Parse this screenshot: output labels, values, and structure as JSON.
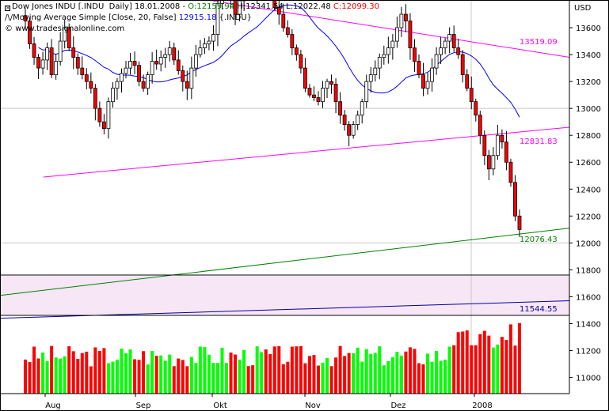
{
  "header": {
    "line1": {
      "symbol": "Dow Jones INDU [.INDU  Daily]",
      "date": "18.01.2008",
      "open_label": "O:",
      "open": "12159.94",
      "high_label": "H:",
      "high": "12341.54",
      "low_label": "L:",
      "low": "12022.48",
      "close_label": "C:",
      "close": "12099.30"
    },
    "line2": {
      "indicator": "Moving Average Simple [Close, 20, False]",
      "value": "12915.18",
      "symbol": "{.INDU}"
    },
    "line3": {
      "watermark": "www.tradesignalonline.com"
    }
  },
  "colors": {
    "up": "#00ff00",
    "down": "#ff0000",
    "candle_outline": "#000000",
    "moving_average": "#0000ff",
    "trendline_magenta": "#ff00ff",
    "trendline_green": "#008000",
    "trendline_blue": "#0000a0",
    "channel_fill": "#f7e6f5",
    "grid": "#c8c8c8"
  },
  "chart_data": {
    "type": "candlestick",
    "currency_label": "USD",
    "y_ticks": [
      11000,
      11200,
      11400,
      11600,
      11800,
      12000,
      12200,
      12400,
      12600,
      12800,
      13000,
      13200,
      13400,
      13600
    ],
    "x_labels": [
      "Aug",
      "Sep",
      "Okt",
      "Nov",
      "Dez",
      "2008"
    ],
    "value_labels": [
      {
        "text": "13519.09",
        "color": "#ff00ff"
      },
      {
        "text": "12831.83",
        "color": "#ff00ff"
      },
      {
        "text": "12076.43",
        "color": "#008000"
      },
      {
        "text": "11544.55",
        "color": "#0000a0"
      }
    ],
    "trendlines": [
      {
        "name": "upper-resistance",
        "color": "#ff00ff",
        "points": [
          [
            "Jul",
            14050
          ],
          [
            "end",
            13380
          ]
        ]
      },
      {
        "name": "support-line",
        "color": "#ff00ff",
        "points": [
          [
            "Jul",
            12490
          ],
          [
            "end",
            12860
          ]
        ]
      },
      {
        "name": "long-support",
        "color": "#008000",
        "points": [
          [
            "Jul",
            11610
          ],
          [
            "end",
            12110
          ]
        ]
      },
      {
        "name": "volume-trend",
        "color": "#0000a0",
        "points": [
          [
            "Jul",
            11440
          ],
          [
            "end",
            11570
          ]
        ]
      }
    ],
    "close_series": [
      13650,
      13480,
      13380,
      13300,
      13360,
      13450,
      13250,
      13350,
      13500,
      13600,
      13450,
      13380,
      13300,
      13250,
      13200,
      13150,
      13000,
      12900,
      12850,
      13050,
      13150,
      13200,
      13260,
      13300,
      13350,
      13320,
      13200,
      13150,
      13250,
      13350,
      13330,
      13380,
      13400,
      13450,
      13360,
      13280,
      13200,
      13150,
      13300,
      13400,
      13450,
      13480,
      13500,
      13550,
      13780,
      13900,
      13950,
      13830,
      13700,
      13800,
      13890,
      13860,
      13850,
      13900,
      13990,
      13950,
      13850,
      13750,
      13700,
      13600,
      13550,
      13450,
      13400,
      13300,
      13150,
      13100,
      13080,
      13050,
      13150,
      13200,
      13180,
      13050,
      12950,
      12880,
      12800,
      12880,
      12950,
      13050,
      13200,
      13250,
      13300,
      13380,
      13400,
      13450,
      13500,
      13600,
      13700,
      13650,
      13450,
      13350,
      13250,
      13150,
      13200,
      13300,
      13400,
      13450,
      13500,
      13550,
      13450,
      13400,
      13250,
      13150,
      13050,
      12950,
      12800,
      12650,
      12550,
      12650,
      12800,
      12750,
      12600,
      12450,
      12200,
      12100
    ]
  }
}
